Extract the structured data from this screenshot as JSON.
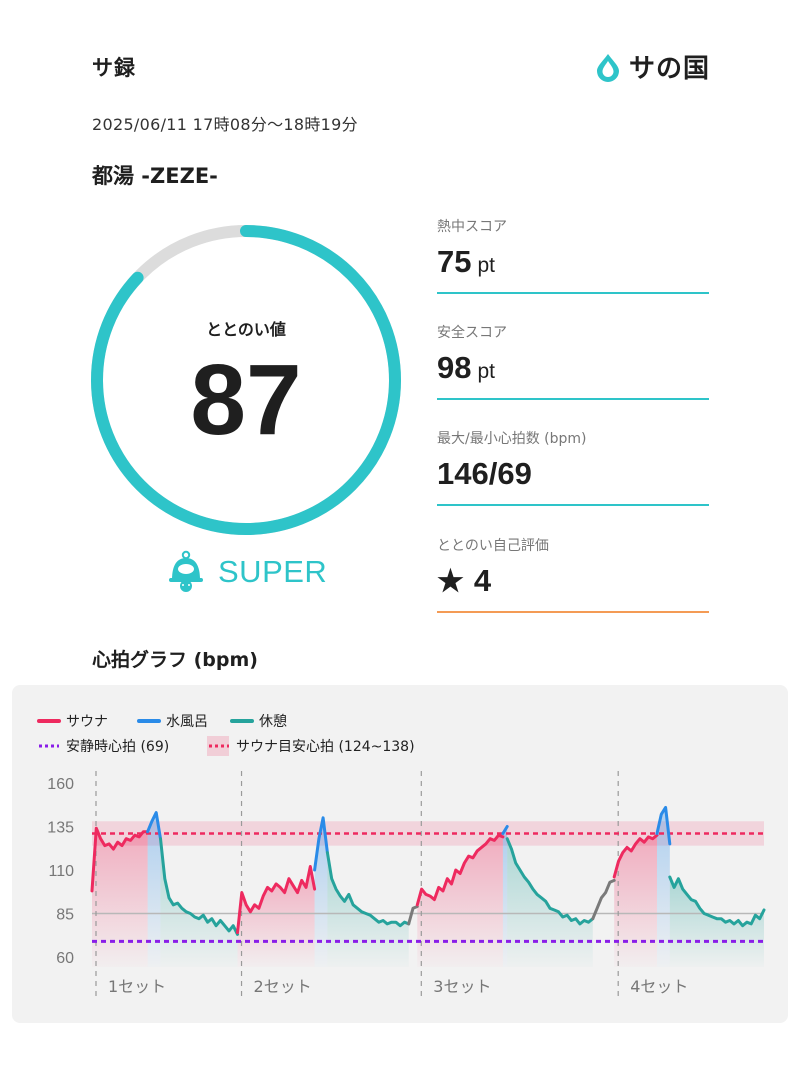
{
  "header": {
    "app_title": "サ録",
    "logo_text": "サの国",
    "logo_icon": "water-drop-icon"
  },
  "session": {
    "datetime": "2025/06/11 17時08分〜18時19分",
    "facility": "都湯 -ZEZE-"
  },
  "totonoi": {
    "label": "ととのい値",
    "value": "87",
    "gauge_fraction": 0.87,
    "rank": "SUPER",
    "rank_icon": "bell-icon"
  },
  "stats": {
    "heat": {
      "label": "熱中スコア",
      "value": "75",
      "unit": "pt"
    },
    "safety": {
      "label": "安全スコア",
      "value": "98",
      "unit": "pt"
    },
    "heart": {
      "label": "最大/最小心拍数 (bpm)",
      "value": "146/69"
    },
    "self_rating": {
      "label": "ととのい自己評価",
      "value": "4",
      "icon": "star-icon"
    }
  },
  "colors": {
    "accent": "#2ec4c9",
    "orange": "#f49b55",
    "sauna": "#ee2a5f",
    "cold": "#2a8be8",
    "rest": "#26a39c",
    "resting": "#8a1ee8",
    "gap": "#7a7a7a"
  },
  "graph": {
    "title": "心拍グラフ (bpm)"
  },
  "chart_data": {
    "type": "line",
    "legend": [
      {
        "name": "サウナ",
        "kind": "line",
        "color": "#ee2a5f"
      },
      {
        "name": "水風呂",
        "kind": "line",
        "color": "#2a8be8"
      },
      {
        "name": "休憩",
        "kind": "line",
        "color": "#26a39c"
      },
      {
        "name": "安静時心拍 (69)",
        "kind": "dash",
        "color": "#8a1ee8"
      },
      {
        "name": "サウナ目安心拍 (124~138)",
        "kind": "dash-band",
        "color": "#ee2a5f"
      }
    ],
    "yticks": [
      "160",
      "135",
      "110",
      "85",
      "60"
    ],
    "ylim": [
      60,
      160
    ],
    "resting_hr": 69,
    "sauna_band": [
      124,
      138
    ],
    "sauna_target_line": 131,
    "baseline": 85,
    "set_labels": [
      "1セット",
      "2セット",
      "3セット",
      "4セット"
    ],
    "sets": [
      {
        "sauna": [
          98,
          134,
          128,
          124,
          125,
          122,
          126,
          124,
          128,
          127,
          130,
          129,
          132,
          132
        ],
        "cold": [
          132,
          138,
          143,
          128
        ],
        "rest": [
          128,
          105,
          94,
          90,
          91,
          88,
          86,
          85,
          83,
          82,
          84,
          80,
          82,
          78,
          81,
          78,
          75,
          78,
          73
        ]
      },
      {
        "sauna": [
          74,
          97,
          90,
          86,
          90,
          88,
          95,
          100,
          98,
          102,
          100,
          97,
          105,
          101,
          97,
          104,
          100,
          112,
          99
        ],
        "cold": [
          110,
          128,
          140,
          120
        ],
        "rest": [
          120,
          105,
          99,
          95,
          92,
          96,
          90,
          88,
          86,
          85,
          84,
          82,
          80,
          81,
          79,
          80,
          80,
          78,
          80,
          79
        ],
        "gap": [
          79,
          88,
          89
        ]
      },
      {
        "sauna": [
          90,
          99,
          96,
          95,
          93,
          100,
          98,
          105,
          102,
          110,
          108,
          114,
          118,
          117,
          121,
          123,
          125,
          128,
          127,
          130,
          129
        ],
        "cold": [
          131,
          135
        ],
        "rest": [
          128,
          122,
          114,
          110,
          106,
          103,
          99,
          96,
          94,
          92,
          88,
          87,
          86,
          83,
          84,
          81,
          82,
          79,
          81,
          80,
          82
        ],
        "gap": [
          82,
          88,
          94,
          97,
          103,
          104
        ]
      },
      {
        "sauna": [
          106,
          115,
          120,
          123,
          121,
          125,
          128,
          126,
          129,
          128,
          130
        ],
        "cold": [
          131,
          142,
          146,
          125
        ],
        "rest": [
          106,
          100,
          105,
          99,
          96,
          93,
          92,
          88,
          85,
          84,
          83,
          82,
          82,
          80,
          81,
          79,
          81,
          78,
          80,
          79,
          84,
          82,
          87
        ]
      }
    ]
  }
}
